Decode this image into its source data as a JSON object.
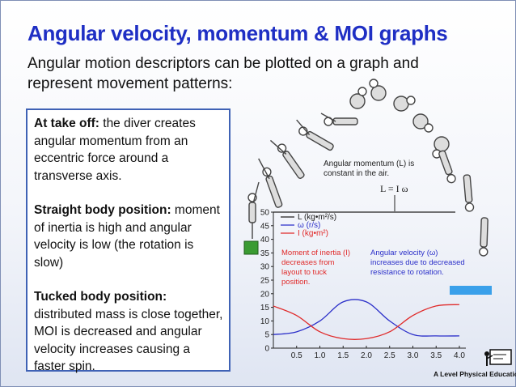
{
  "title": "Angular velocity, momentum & MOI graphs",
  "intro": "Angular motion descriptors can be plotted on a graph and represent movement patterns:",
  "points": [
    {
      "heading": "At take off:",
      "text": " the diver creates angular momentum from an eccentric force around a transverse axis."
    },
    {
      "heading": "Straight body position:",
      "text": " moment of inertia is high and angular velocity is low (the rotation is slow)"
    },
    {
      "heading": "Tucked body position:",
      "text": " distributed mass is close together, MOI is decreased and angular velocity increases causing a faster spin."
    }
  ],
  "diagram": {
    "momentum_note_line1": "Angular momentum (L) is",
    "momentum_note_line2": "constant in the air.",
    "formula": "L = I ω",
    "inertia_note": [
      "Moment of inertia (I)",
      "decreases from",
      "layout to tuck",
      "position."
    ],
    "velocity_note": [
      "Angular velocity (ω)",
      "increases due to decreased",
      "resistance to rotation."
    ],
    "colors": {
      "momentum": "#222222",
      "velocity": "#2b2fc9",
      "inertia": "#e02a2a",
      "board_left": "#3a9b32",
      "board_right": "#3aa0ea"
    }
  },
  "chart_data": {
    "type": "line",
    "x": [
      0,
      0.5,
      1.0,
      1.5,
      2.0,
      2.5,
      3.0,
      3.5,
      4.0
    ],
    "xticks": [
      "0.5",
      "1.0",
      "1.5",
      "2.0",
      "2.5",
      "3.0",
      "3.5",
      "4.0"
    ],
    "yticks": [
      "0",
      "5",
      "10",
      "15",
      "20",
      "25",
      "30",
      "35",
      "40",
      "45",
      "50"
    ],
    "xlim": [
      0,
      4.0
    ],
    "ylim": [
      0,
      50
    ],
    "series": [
      {
        "name": "L (kg•m²/s)",
        "key": "momentum",
        "x": [
          0,
          4.0
        ],
        "values": [
          50,
          50
        ]
      },
      {
        "name": "ω (r/s)",
        "key": "velocity",
        "x": [
          0,
          0.5,
          1.0,
          1.5,
          2.0,
          2.5,
          3.0,
          3.5,
          4.0
        ],
        "values": [
          5,
          6,
          10,
          17,
          17,
          10,
          5,
          4.5,
          4.5
        ]
      },
      {
        "name": "I (kg•m²)",
        "key": "inertia",
        "x": [
          0,
          0.5,
          1.0,
          1.5,
          2.0,
          2.5,
          3.0,
          3.5,
          4.0
        ],
        "values": [
          15.5,
          12,
          6,
          3.5,
          3.5,
          6,
          12,
          15.5,
          16
        ]
      }
    ]
  },
  "footer": "A Level Physical Education"
}
